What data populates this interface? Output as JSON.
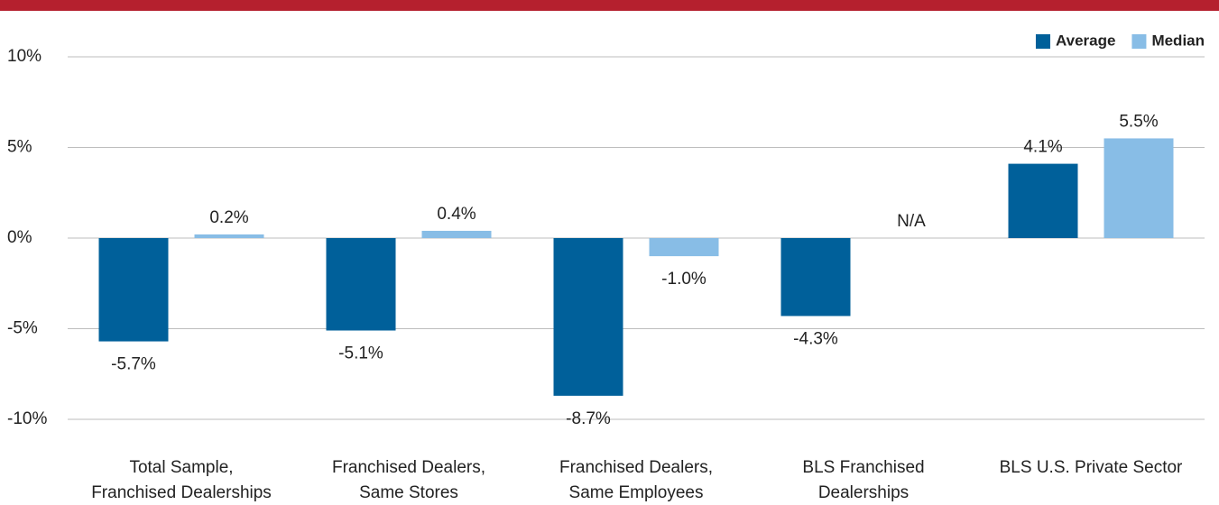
{
  "chart_data": {
    "type": "bar",
    "categories": [
      [
        "Total Sample,",
        "Franchised Dealerships"
      ],
      [
        "Franchised Dealers,",
        "Same Stores"
      ],
      [
        "Franchised Dealers,",
        "Same Employees"
      ],
      [
        "BLS Franchised",
        "Dealerships"
      ],
      [
        "BLS U.S. Private Sector"
      ]
    ],
    "series": [
      {
        "name": "Average",
        "color": "#00609a",
        "values": [
          -5.7,
          -5.1,
          -8.7,
          -4.3,
          4.1
        ],
        "value_labels": [
          "-5.7%",
          "-5.1%",
          "-8.7%",
          "-4.3%",
          "4.1%"
        ]
      },
      {
        "name": "Median",
        "color": "#88bde6",
        "values": [
          0.2,
          0.4,
          -1.0,
          null,
          5.5
        ],
        "value_labels": [
          "0.2%",
          "0.4%",
          "-1.0%",
          "N/A",
          "5.5%"
        ]
      }
    ],
    "ylim": [
      -10,
      10
    ],
    "yticks": [
      {
        "value": -10,
        "label": "-10%"
      },
      {
        "value": -5,
        "label": "-5%"
      },
      {
        "value": 0,
        "label": "0%"
      },
      {
        "value": 5,
        "label": "5%"
      },
      {
        "value": 10,
        "label": "10%"
      }
    ],
    "grid": true,
    "legend": "top-right"
  }
}
